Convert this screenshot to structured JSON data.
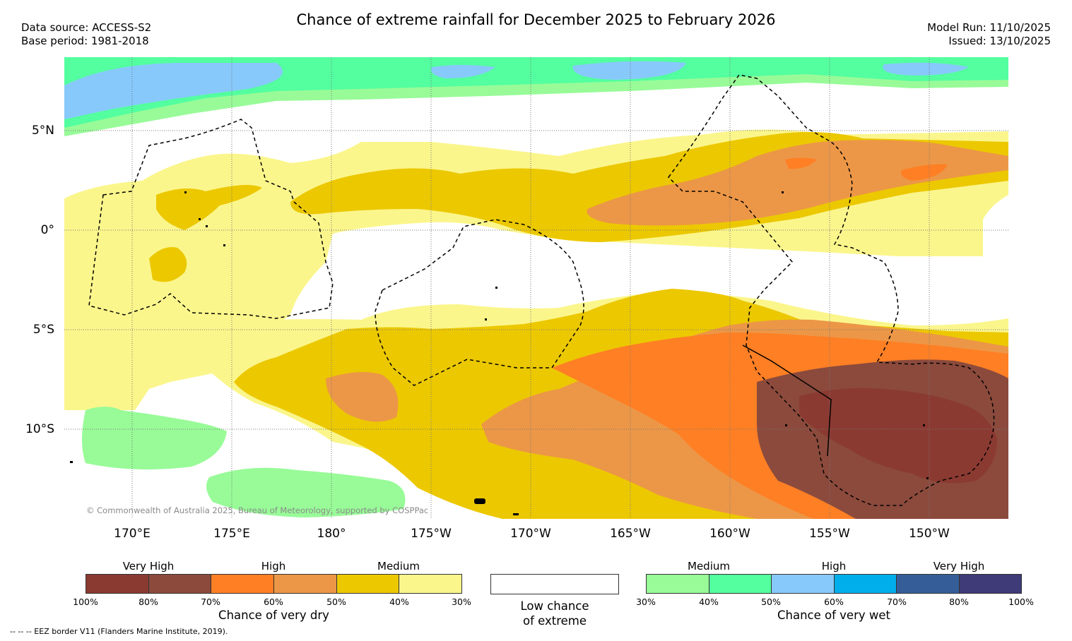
{
  "header": {
    "title": "Chance of extreme rainfall for December 2025 to February 2026",
    "data_source": "Data source: ACCESS-S2",
    "base_period": "Base period: 1981-2018",
    "model_run": "Model Run: 11/10/2025",
    "issued": "Issued: 13/10/2025"
  },
  "map": {
    "lat_labels": [
      "5°N",
      "0°",
      "5°S",
      "10°S"
    ],
    "lon_labels": [
      "170°E",
      "175°E",
      "180°",
      "175°W",
      "170°W",
      "165°W",
      "160°W",
      "155°W",
      "150°W"
    ],
    "copyright": "© Commonwealth of Australia 2025, Bureau of Meteorology, supported by COSPPac"
  },
  "colors": {
    "dry_100_80": "#8b3a32",
    "dry_80_70": "#8b4a3c",
    "dry_70_60": "#ff7f24",
    "dry_60_50": "#ec9747",
    "dry_50_40": "#ecc800",
    "dry_40_30": "#fbf68c",
    "wet_30_40": "#98fb98",
    "wet_40_50": "#53ff9f",
    "wet_50_60": "#87c9fb",
    "wet_60_70": "#00aeeb",
    "wet_70_80": "#355e98",
    "wet_80_100": "#3f3a78"
  },
  "legend": {
    "dry": {
      "categories": [
        "Very High",
        "High",
        "Medium"
      ],
      "ticks": [
        "100%",
        "80%",
        "70%",
        "60%",
        "50%",
        "40%",
        "30%"
      ],
      "caption": "Chance of very dry"
    },
    "low": {
      "caption_line1": "Low chance",
      "caption_line2": "of extreme"
    },
    "wet": {
      "categories": [
        "Medium",
        "High",
        "Very High"
      ],
      "ticks": [
        "30%",
        "40%",
        "50%",
        "60%",
        "70%",
        "80%",
        "100%"
      ],
      "caption": "Chance of very wet"
    }
  },
  "footer": {
    "eez_note": "--  --  -- EEZ border V11 (Flanders Marine Institute, 2019)."
  }
}
